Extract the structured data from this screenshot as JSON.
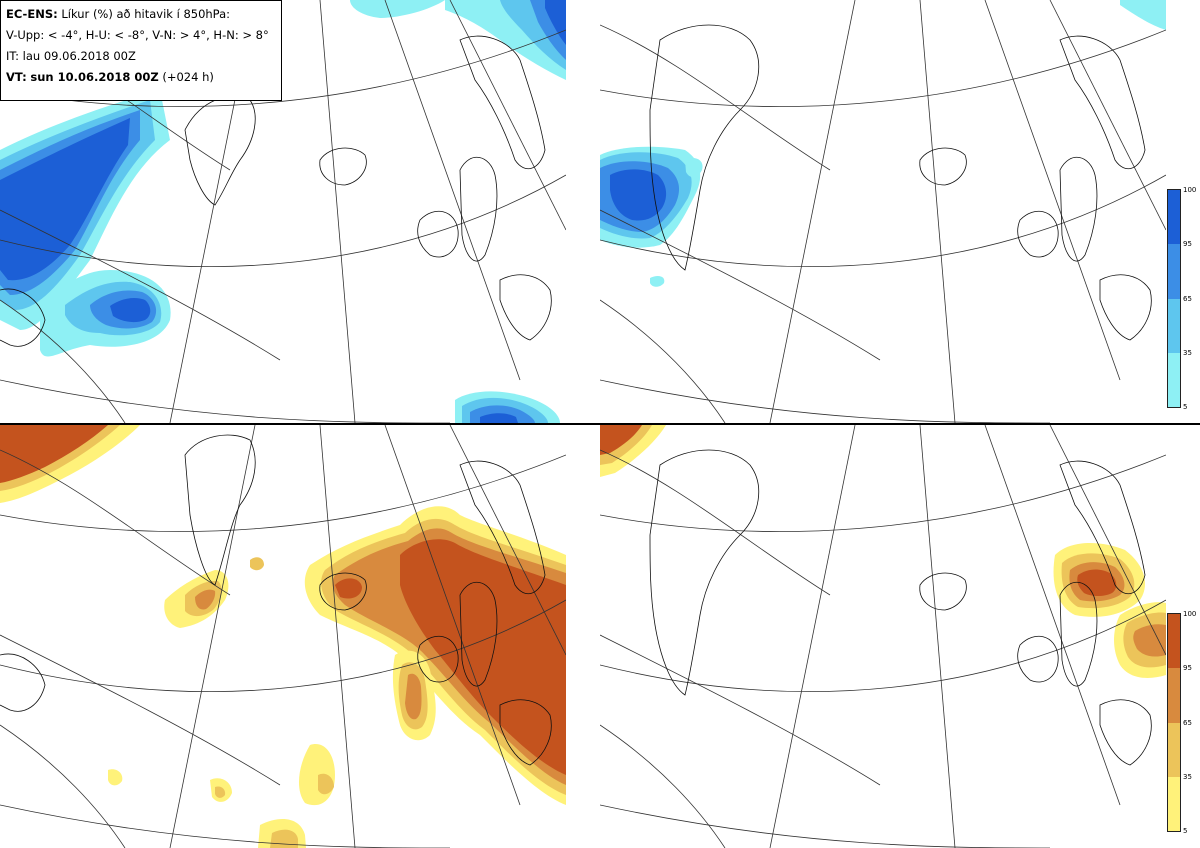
{
  "header": {
    "model": "EC-ENS:",
    "title_rest": "Líkur (%) að hitavik í 850hPa:",
    "thresholds": "V-Upp: < -4°, H-U: < -8°, V-N: > 4°, H-N: > 8°",
    "initial_time": "IT: lau 09.06.2018 00Z",
    "valid_label": "VT:",
    "valid_time": "sun 10.06.2018 00Z",
    "lead": "(+024 h)"
  },
  "colorbars": {
    "cold": {
      "ticks": [
        "100",
        "95",
        "65",
        "35",
        "5"
      ],
      "colors": [
        "#1c5fd6",
        "#3c8ee6",
        "#5ec6ee",
        "#8ef0f4"
      ]
    },
    "warm": {
      "ticks": [
        "100",
        "95",
        "65",
        "35",
        "5"
      ],
      "colors": [
        "#c4531e",
        "#d88a3e",
        "#ecc45a",
        "#fff27a"
      ]
    }
  },
  "panels": [
    {
      "id": "V-Upp",
      "colormap": "cold"
    },
    {
      "id": "H-U",
      "colormap": "cold"
    },
    {
      "id": "V-N",
      "colormap": "warm"
    },
    {
      "id": "H-N",
      "colormap": "warm"
    }
  ]
}
